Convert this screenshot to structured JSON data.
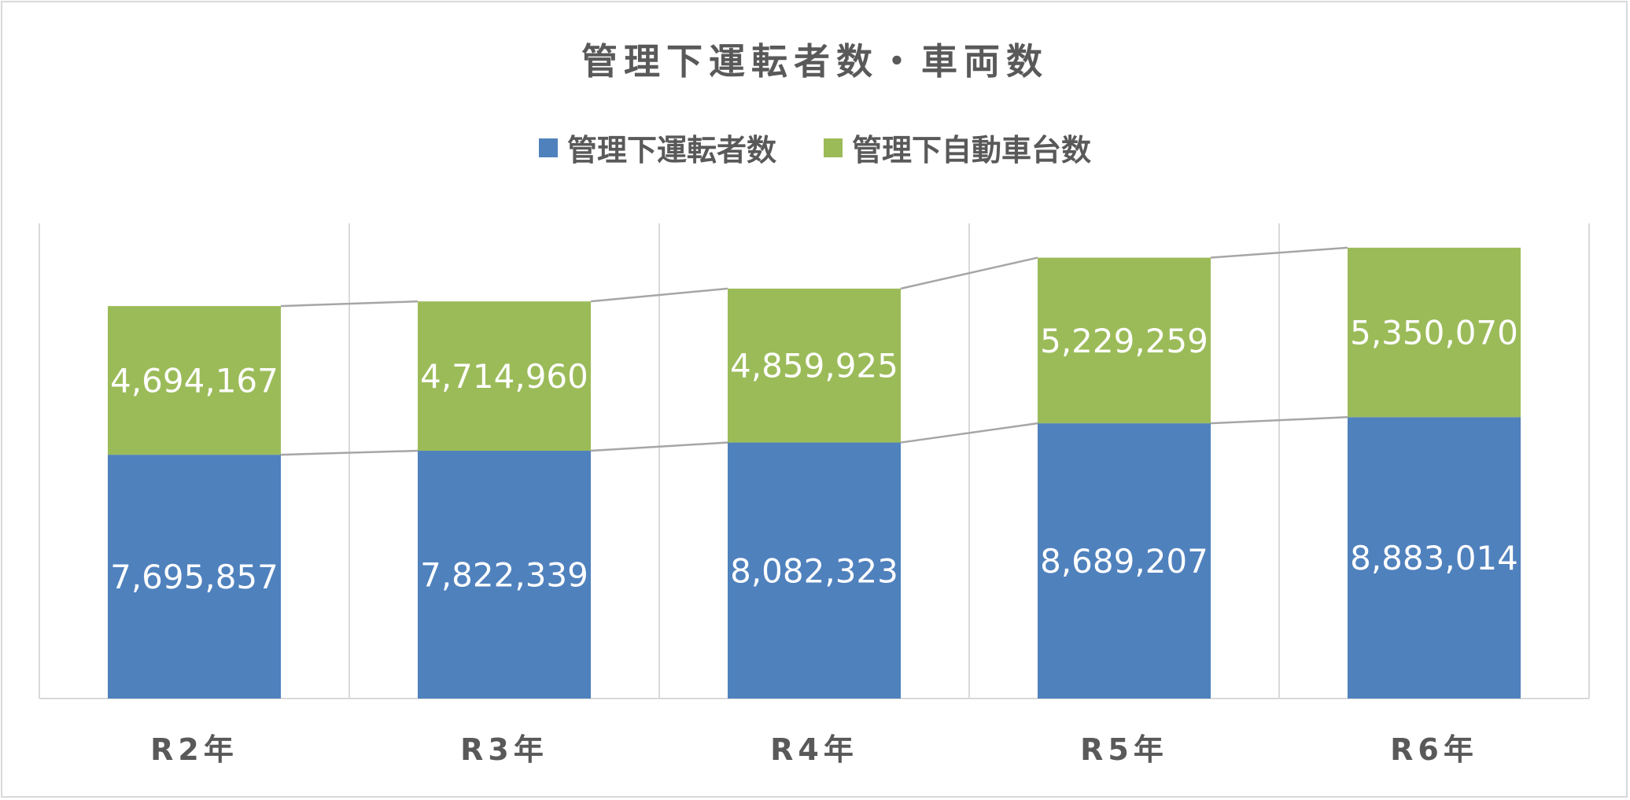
{
  "chart_data": {
    "type": "bar",
    "stacked": true,
    "title": "管理下運転者数・車両数",
    "categories": [
      "R2年",
      "R3年",
      "R4年",
      "R5年",
      "R6年"
    ],
    "series": [
      {
        "name": "管理下運転者数",
        "color": "#4f81bd",
        "values": [
          7695857,
          7822339,
          8082323,
          8689207,
          8883014
        ]
      },
      {
        "name": "管理下自動車台数",
        "color": "#9bbb59",
        "values": [
          4694167,
          4714960,
          4859925,
          5229259,
          5350070
        ]
      }
    ],
    "data_labels": {
      "管理下運転者数": [
        "7,695,857",
        "7,822,339",
        "8,082,323",
        "8,689,207",
        "8,883,014"
      ],
      "管理下自動車台数": [
        "4,694,167",
        "4,714,960",
        "4,859,925",
        "5,229,259",
        "5,350,070"
      ]
    },
    "ylim": [
      0,
      15000000
    ],
    "grid": "vertical",
    "series_lines": true,
    "legend_position": "top"
  }
}
